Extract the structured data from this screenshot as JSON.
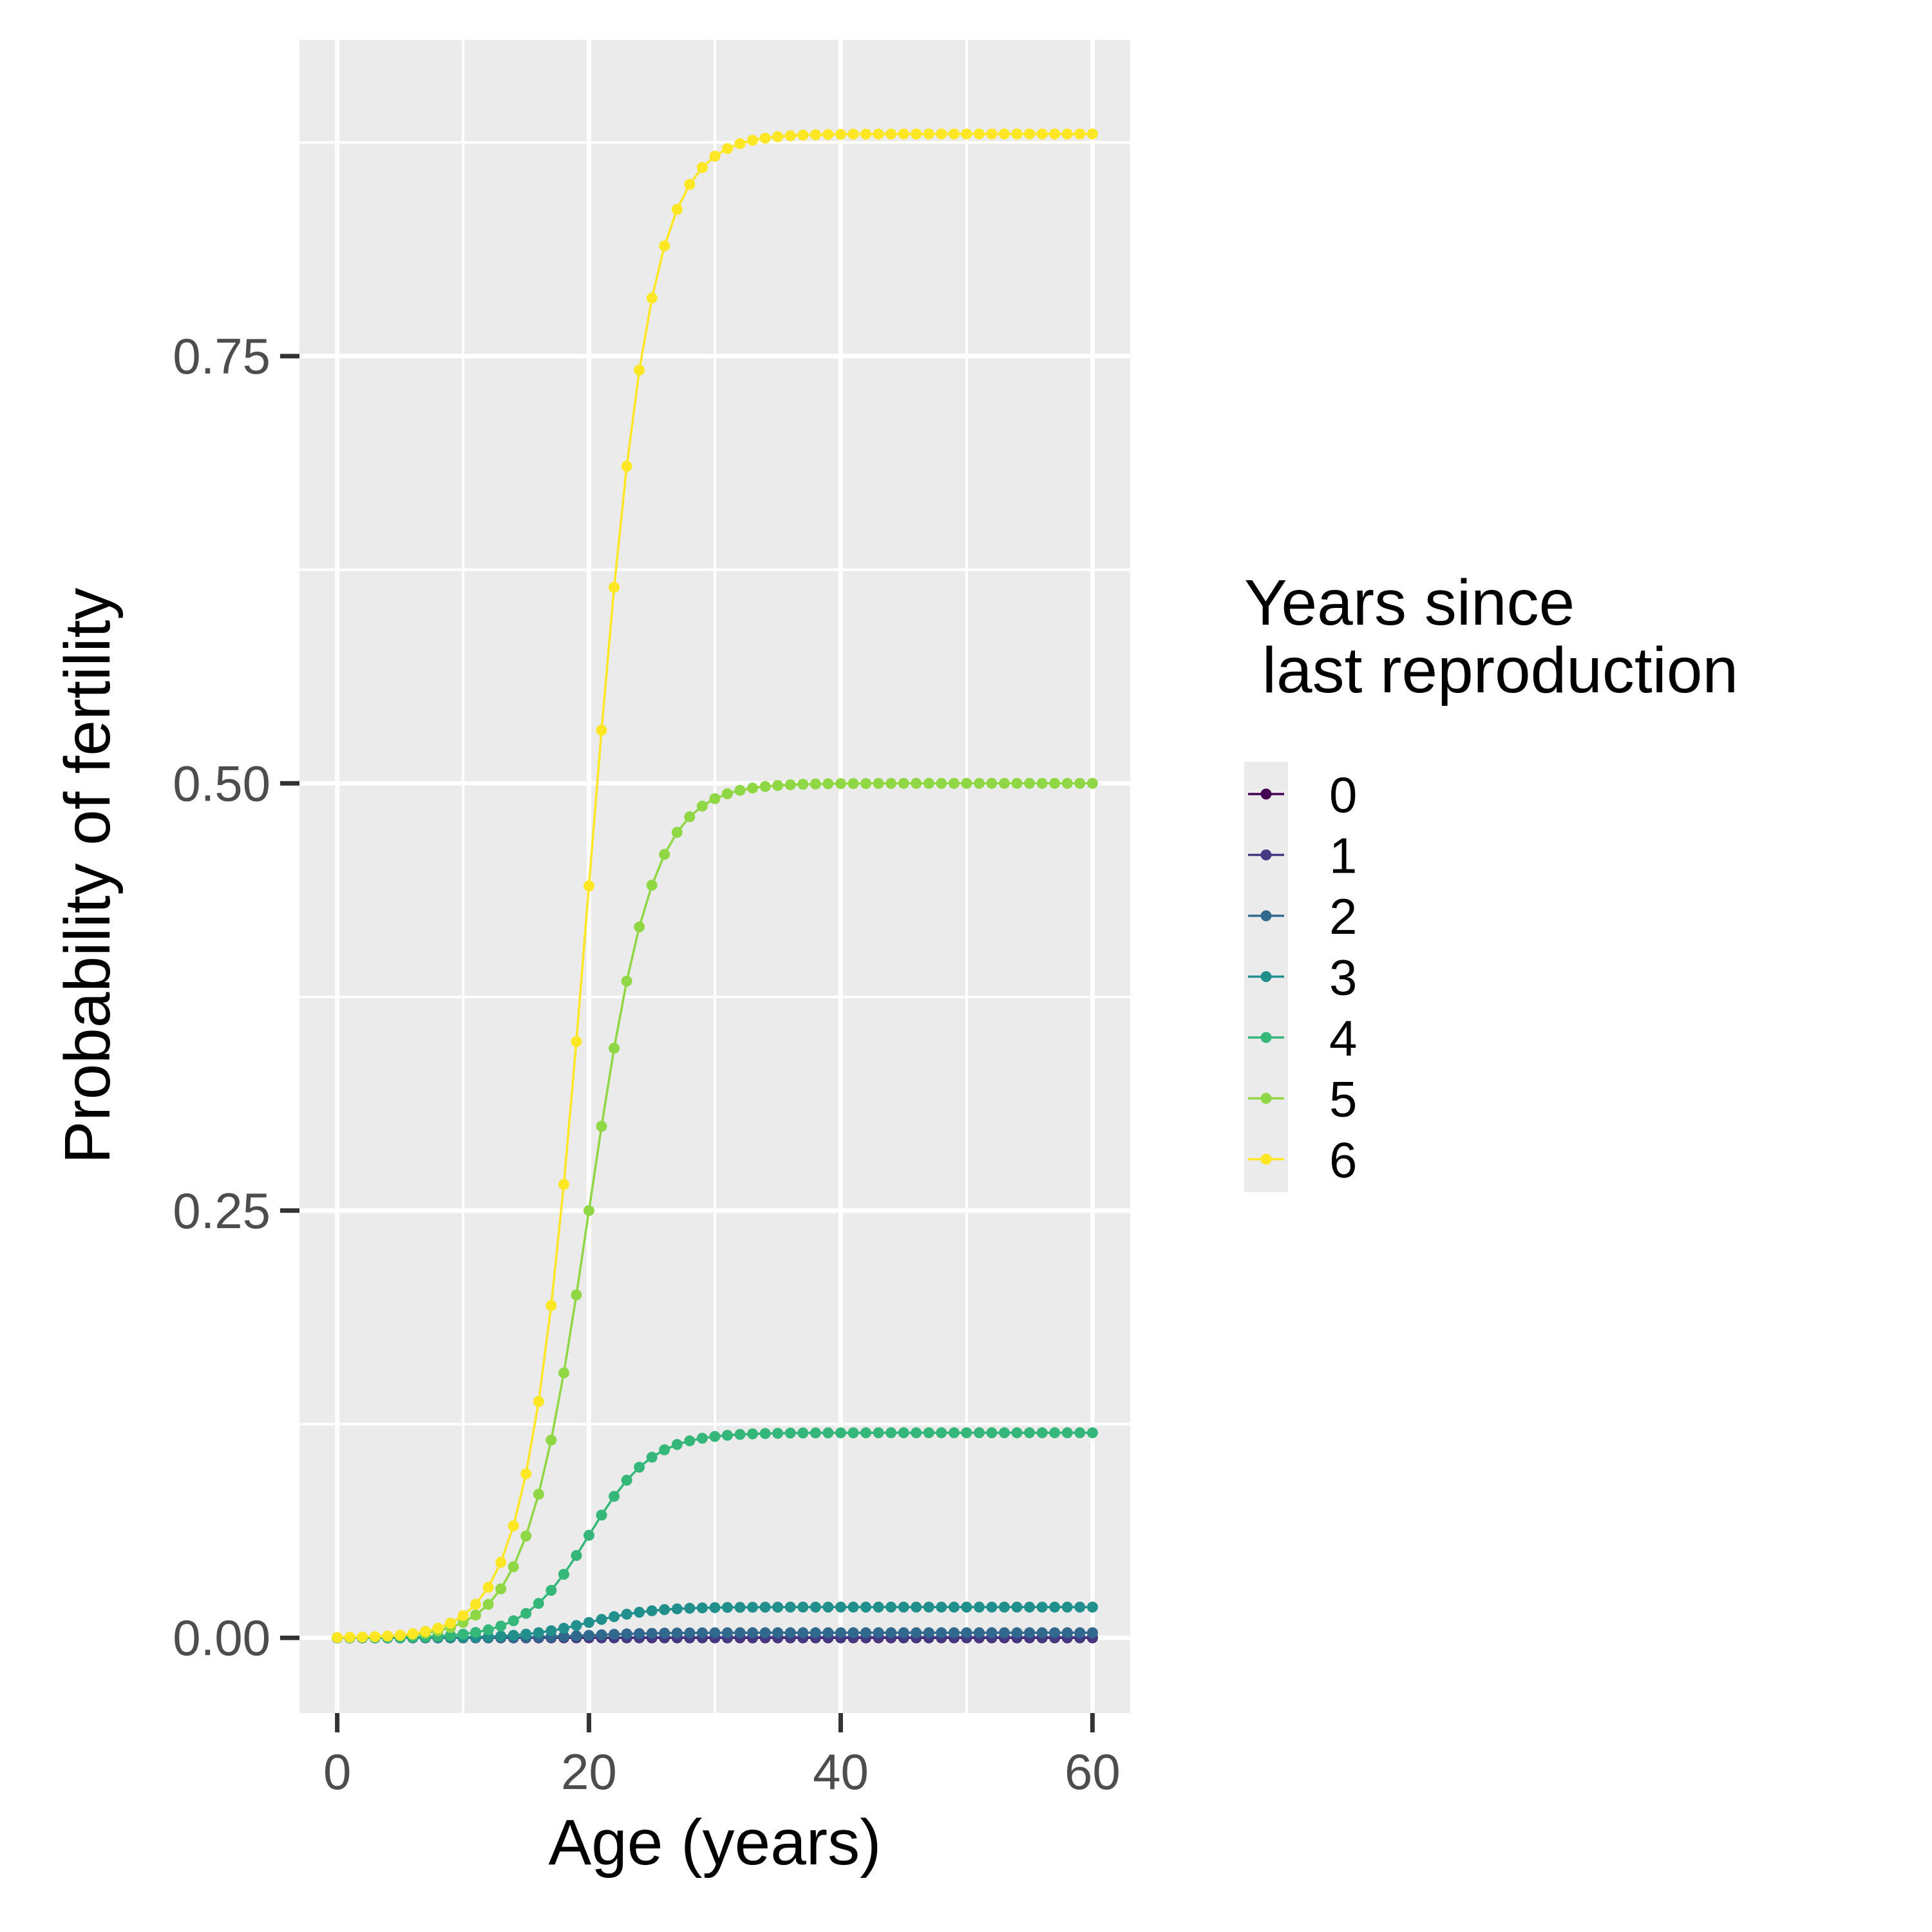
{
  "chart_data": {
    "type": "line",
    "xlabel": "Age (years)",
    "ylabel": "Probability of fertility",
    "xlim": [
      -3,
      63
    ],
    "ylim": [
      -0.044,
      0.935
    ],
    "x_ticks": [
      0,
      20,
      40,
      60
    ],
    "x_tick_labels": [
      "0",
      "20",
      "40",
      "60"
    ],
    "y_ticks": [
      0.0,
      0.25,
      0.5,
      0.75
    ],
    "y_tick_labels": [
      "0.00",
      "0.25",
      "0.50",
      "0.75"
    ],
    "grid": true,
    "legend": {
      "title_lines": [
        "Years since",
        " last reproduction"
      ],
      "position": "right"
    },
    "x_start": 0,
    "x_end": 60,
    "series": [
      {
        "name": "0",
        "color": "#440154",
        "asymptote": 0.0,
        "midpoint": 20,
        "steepness": 0.4
      },
      {
        "name": "1",
        "color": "#443A83",
        "asymptote": 0.0003,
        "midpoint": 20,
        "steepness": 0.4
      },
      {
        "name": "2",
        "color": "#31688E",
        "asymptote": 0.003,
        "midpoint": 20,
        "steepness": 0.4
      },
      {
        "name": "3",
        "color": "#21908D",
        "asymptote": 0.018,
        "midpoint": 20,
        "steepness": 0.4
      },
      {
        "name": "4",
        "color": "#35B779",
        "asymptote": 0.12,
        "midpoint": 20,
        "steepness": 0.4
      },
      {
        "name": "5",
        "color": "#8FD744",
        "asymptote": 0.5,
        "midpoint": 20,
        "steepness": 0.4
      },
      {
        "name": "6",
        "color": "#FDE725",
        "asymptote": 0.88,
        "midpoint": 20,
        "steepness": 0.42
      }
    ]
  }
}
